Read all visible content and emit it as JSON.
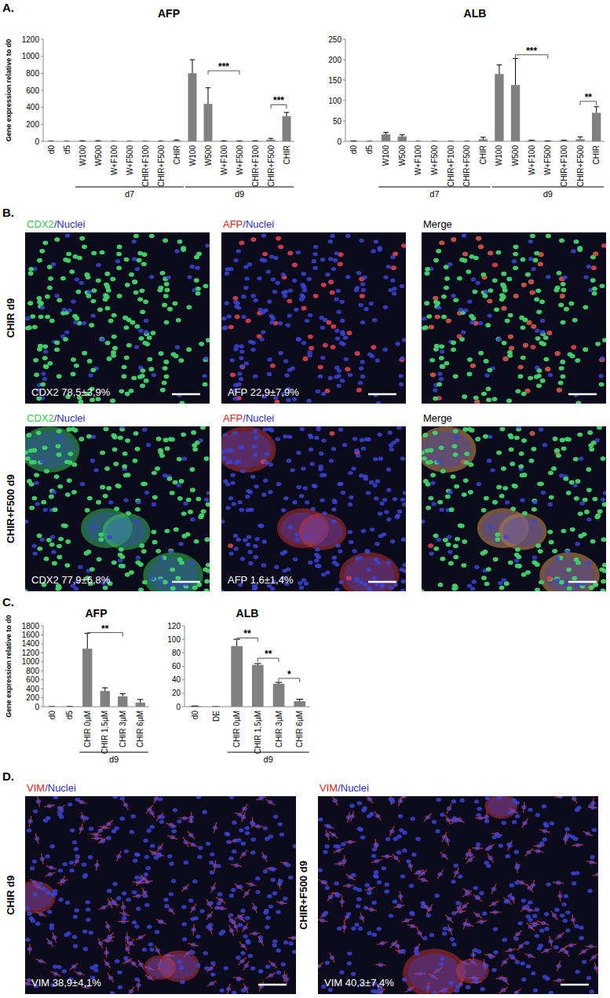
{
  "figure": {
    "panel_labels": [
      "A.",
      "B.",
      "C.",
      "D."
    ],
    "panel_b": {
      "rows": [
        {
          "label": "CHIR d9",
          "images": [
            {
              "header": [
                {
                  "text": "CDX2",
                  "color": "#2fc94a"
                },
                {
                  "text": "/Nuclei",
                  "color": "#2d2dbf"
                }
              ],
              "label": "CDX2 78,5±3,9%",
              "channels": [
                "#3a44d8",
                "#3ee05a"
              ]
            },
            {
              "header": [
                {
                  "text": "AFP",
                  "color": "#e02020"
                },
                {
                  "text": "/Nuclei",
                  "color": "#2d2dbf"
                }
              ],
              "label": "AFP 22,9±7,9%",
              "channels": [
                "#3a44d8",
                null,
                "#e03a3a"
              ]
            },
            {
              "header": [
                {
                  "text": "Merge",
                  "color": "#000000"
                }
              ],
              "channels": [
                "#3a44d8",
                "#3ee05a",
                "#e03a3a"
              ]
            }
          ]
        },
        {
          "label": "CHIR+F500 d9",
          "images": [
            {
              "header": [
                {
                  "text": "CDX2",
                  "color": "#2fc94a"
                },
                {
                  "text": "/Nuclei",
                  "color": "#2d2dbf"
                }
              ],
              "label": "CDX2 77,9±6,8%",
              "channels": [
                "#3a44d8",
                "#3ee05a"
              ]
            },
            {
              "header": [
                {
                  "text": "AFP",
                  "color": "#e02020"
                },
                {
                  "text": "/Nuclei",
                  "color": "#2d2dbf"
                }
              ],
              "label": "AFP 1,6±1,4%",
              "channels": [
                "#3a44d8",
                null,
                "#e03a3a"
              ]
            },
            {
              "header": [
                {
                  "text": "Merge",
                  "color": "#000000"
                }
              ],
              "channels": [
                "#3a44d8",
                "#3ee05a",
                "#e03a3a"
              ]
            }
          ]
        }
      ]
    },
    "panel_d": {
      "images": [
        {
          "side_label": "CHIR d9",
          "header": [
            {
              "text": "VIM",
              "color": "#e02020"
            },
            {
              "text": "/Nuclei",
              "color": "#2d2dbf"
            }
          ],
          "label": "VIM 38,9±4,1%",
          "channels": [
            "#3a44d8",
            "#e03a3a"
          ]
        },
        {
          "side_label": "CHIR+F500 d9",
          "header": [
            {
              "text": "VIM",
              "color": "#e02020"
            },
            {
              "text": "/Nuclei",
              "color": "#2d2dbf"
            }
          ],
          "label": "VIM 40,3±7,4%",
          "channels": [
            "#3a44d8",
            "#e03a3a"
          ]
        }
      ]
    }
  },
  "chart_data": [
    {
      "type": "bar",
      "title": "AFP",
      "y_label": "Gene expression relative to d0",
      "categories": [
        "d0",
        "d5",
        "W100",
        "W500",
        "W+F100",
        "W+F500",
        "CHIR+F100",
        "CHIR+F500",
        "CHIR",
        "W100",
        "W500",
        "W+F100",
        "W+F500",
        "CHIR+F100",
        "CHIR+F500",
        "CHIR"
      ],
      "values": [
        1,
        0,
        5,
        6,
        0,
        0,
        0,
        1,
        12,
        800,
        440,
        5,
        3,
        5,
        20,
        295
      ],
      "errors": [
        0,
        0,
        2,
        2,
        0,
        0,
        0,
        1,
        6,
        160,
        190,
        2,
        1,
        2,
        15,
        45
      ],
      "color": "#808080",
      "ylim": [
        0,
        1200
      ],
      "yticks": [
        0,
        200,
        400,
        600,
        800,
        1000,
        1200
      ],
      "groups": [
        {
          "label": "d7",
          "from": 2,
          "to": 8
        },
        {
          "label": "d9",
          "from": 9,
          "to": 15
        }
      ],
      "significance": [
        {
          "label": "***",
          "from": 10,
          "to": 12,
          "y": 830
        },
        {
          "label": "***",
          "from": 14,
          "to": 15,
          "y": 430
        }
      ]
    },
    {
      "type": "bar",
      "title": "ALB",
      "categories": [
        "d0",
        "d5",
        "W100",
        "W500",
        "W+F100",
        "W+F500",
        "CHIR+F100",
        "CHIR+F500",
        "CHIR",
        "W100",
        "W500",
        "W+F100",
        "W+F500",
        "CHIR+F100",
        "CHIR+F500",
        "CHIR"
      ],
      "values": [
        1,
        0,
        17,
        12,
        0,
        0,
        0,
        0,
        5,
        165,
        138,
        2,
        1,
        2,
        5,
        70
      ],
      "errors": [
        0,
        0,
        5,
        4,
        0,
        0,
        0,
        0,
        5,
        22,
        65,
        1,
        0,
        1,
        6,
        15
      ],
      "color": "#808080",
      "ylim": [
        0,
        250
      ],
      "yticks": [
        0,
        50,
        100,
        150,
        200,
        250
      ],
      "groups": [
        {
          "label": "d7",
          "from": 2,
          "to": 8
        },
        {
          "label": "d9",
          "from": 9,
          "to": 15
        }
      ],
      "significance": [
        {
          "label": "***",
          "from": 10,
          "to": 12,
          "y": 212
        },
        {
          "label": "**",
          "from": 14,
          "to": 15,
          "y": 98
        }
      ]
    },
    {
      "type": "bar",
      "title": "AFP",
      "y_label": "Gene expression relative to d0",
      "categories": [
        "d0",
        "d5",
        "CHIR 0µM",
        "CHIR 1,5µM",
        "CHIR 3µM",
        "CHIR 6µM"
      ],
      "values": [
        1,
        2,
        1290,
        350,
        230,
        90
      ],
      "errors": [
        0,
        0,
        340,
        70,
        60,
        70
      ],
      "color": "#808080",
      "ylim": [
        0,
        1800
      ],
      "yticks": [
        0,
        200,
        400,
        600,
        800,
        1000,
        1200,
        1400,
        1600,
        1800
      ],
      "groups": [
        {
          "label": "d9",
          "from": 2,
          "to": 5
        }
      ],
      "significance": [
        {
          "label": "**",
          "from": 2,
          "to": 4,
          "y": 1650
        }
      ]
    },
    {
      "type": "bar",
      "title": "ALB",
      "categories": [
        "d0",
        "DE",
        "CHIR 0µM",
        "CHIR 1,5µM",
        "CHIR 3µM",
        "CHIR 6µM"
      ],
      "values": [
        1,
        0,
        90,
        62,
        34,
        8
      ],
      "errors": [
        0,
        0,
        10,
        2,
        2,
        3
      ],
      "color": "#808080",
      "ylim": [
        0,
        120
      ],
      "yticks": [
        0,
        20,
        40,
        60,
        80,
        100,
        120
      ],
      "groups": [
        {
          "label": "d9",
          "from": 2,
          "to": 5
        }
      ],
      "significance": [
        {
          "label": "**",
          "from": 2,
          "to": 3,
          "y": 102
        },
        {
          "label": "**",
          "from": 3,
          "to": 4,
          "y": 72
        },
        {
          "label": "*",
          "from": 4,
          "to": 5,
          "y": 42
        }
      ]
    }
  ]
}
